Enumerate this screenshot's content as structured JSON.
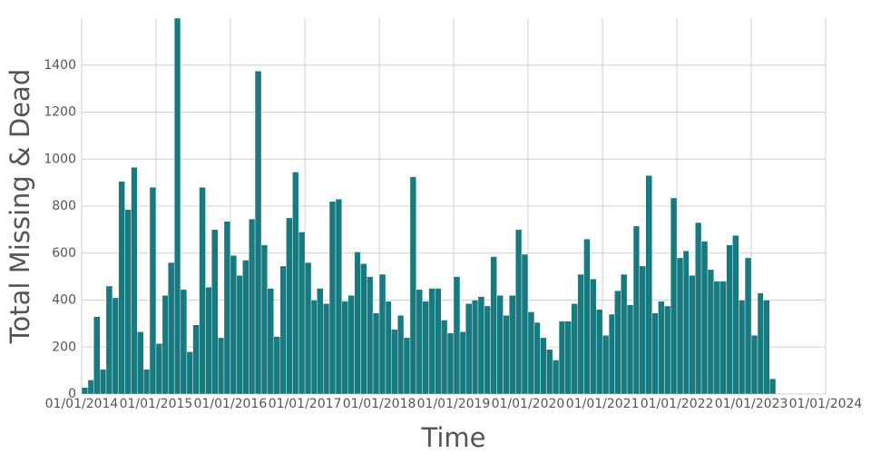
{
  "chart_data": {
    "type": "histogram",
    "x_label": "Time",
    "y_label": "Total Missing & Dead",
    "color": "#167a80",
    "grid": true,
    "bins": [
      "01/01/2014",
      "02/01/2014",
      "03/01/2014",
      "04/01/2014",
      "05/01/2014",
      "06/01/2014",
      "07/01/2014",
      "08/01/2014",
      "09/01/2014",
      "10/01/2014",
      "11/01/2014",
      "12/01/2014",
      "01/01/2015",
      "02/01/2015",
      "03/01/2015",
      "04/01/2015",
      "05/01/2015",
      "06/01/2015",
      "07/01/2015",
      "08/01/2015",
      "09/01/2015",
      "10/01/2015",
      "11/01/2015",
      "12/01/2015",
      "01/01/2016",
      "02/01/2016",
      "03/01/2016",
      "04/01/2016",
      "05/01/2016",
      "06/01/2016",
      "07/01/2016",
      "08/01/2016",
      "09/01/2016",
      "10/01/2016",
      "11/01/2016",
      "12/01/2016",
      "01/01/2017",
      "02/01/2017",
      "03/01/2017",
      "04/01/2017",
      "05/01/2017",
      "06/01/2017",
      "07/01/2017",
      "08/01/2017",
      "09/01/2017",
      "10/01/2017",
      "11/01/2017",
      "12/01/2017",
      "01/01/2018",
      "02/01/2018",
      "03/01/2018",
      "04/01/2018",
      "05/01/2018",
      "06/01/2018",
      "07/01/2018",
      "08/01/2018",
      "09/01/2018",
      "10/01/2018",
      "11/01/2018",
      "12/01/2018",
      "01/01/2019",
      "02/01/2019",
      "03/01/2019",
      "04/01/2019",
      "05/01/2019",
      "06/01/2019",
      "07/01/2019",
      "08/01/2019",
      "09/01/2019",
      "10/01/2019",
      "11/01/2019",
      "12/01/2019",
      "01/01/2020",
      "02/01/2020",
      "03/01/2020",
      "04/01/2020",
      "05/01/2020",
      "06/01/2020",
      "07/01/2020",
      "08/01/2020",
      "09/01/2020",
      "10/01/2020",
      "11/01/2020",
      "12/01/2020",
      "01/01/2021",
      "02/01/2021",
      "03/01/2021",
      "04/01/2021",
      "05/01/2021",
      "06/01/2021",
      "07/01/2021",
      "08/01/2021",
      "09/01/2021",
      "10/01/2021",
      "11/01/2021",
      "12/01/2021",
      "01/01/2022",
      "02/01/2022",
      "03/01/2022",
      "04/01/2022",
      "05/01/2022",
      "06/01/2022",
      "07/01/2022",
      "08/01/2022",
      "09/01/2022",
      "10/01/2022",
      "11/01/2022",
      "12/01/2022",
      "01/01/2023",
      "02/01/2023",
      "03/01/2023",
      "04/01/2023",
      "05/01/2023"
    ],
    "values": [
      28,
      60,
      330,
      105,
      460,
      410,
      905,
      785,
      965,
      265,
      105,
      880,
      215,
      420,
      560,
      1600,
      445,
      180,
      295,
      880,
      455,
      700,
      240,
      735,
      590,
      505,
      570,
      745,
      1375,
      635,
      450,
      245,
      545,
      750,
      945,
      690,
      560,
      400,
      450,
      385,
      820,
      830,
      395,
      420,
      605,
      555,
      500,
      345,
      510,
      395,
      275,
      335,
      240,
      925,
      445,
      395,
      450,
      450,
      315,
      260,
      500,
      265,
      385,
      400,
      415,
      375,
      585,
      420,
      335,
      420,
      700,
      595,
      350,
      305,
      240,
      190,
      145,
      310,
      310,
      385,
      510,
      660,
      490,
      360,
      250,
      340,
      440,
      510,
      380,
      715,
      545,
      930,
      345,
      395,
      375,
      835,
      580,
      610,
      505,
      730,
      650,
      530,
      480,
      480,
      635,
      675,
      400,
      580,
      250,
      430,
      400,
      65
    ],
    "xlim": [
      "01/01/2014",
      "01/01/2024"
    ],
    "xticks": [
      "01/01/2014",
      "01/01/2015",
      "01/01/2016",
      "01/01/2017",
      "01/01/2018",
      "01/01/2019",
      "01/01/2020",
      "01/01/2021",
      "01/01/2022",
      "01/01/2023",
      "01/01/2024"
    ],
    "ylim": [
      0,
      1600
    ],
    "yticks": [
      0,
      200,
      400,
      600,
      800,
      1000,
      1200,
      1400
    ]
  }
}
